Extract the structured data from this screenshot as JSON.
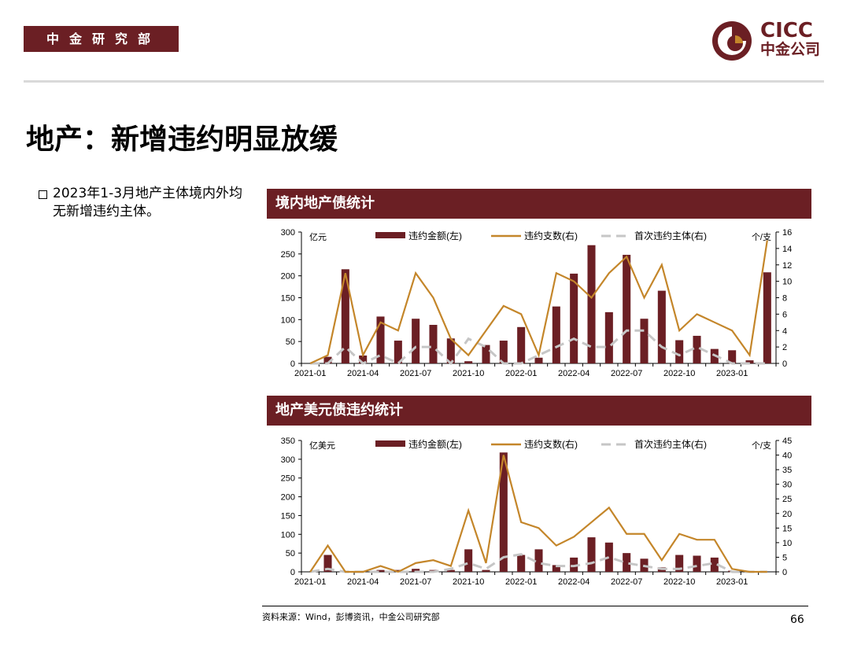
{
  "header": {
    "dept_tag": "中金研究部",
    "logo_en": "CICC",
    "logo_cn": "中金公司"
  },
  "colors": {
    "brand": "#6b1f24",
    "bar": "#6b1f24",
    "line": "#c4862a",
    "dashed": "#c6c6c6"
  },
  "slide": {
    "title": "地产：新增违约明显放缓",
    "bullet": "2023年1-3月地产主体境内外均无新增违约主体。",
    "footer_source": "资料来源：Wind，彭博资讯，中金公司研究部",
    "page_number": "66"
  },
  "chart_data": [
    {
      "id": "domestic",
      "panel_title": "境内地产债统计",
      "type": "bar+line",
      "left_unit": "亿元",
      "right_unit": "个/支",
      "ylim_left": [
        0,
        300
      ],
      "ylim_right": [
        0,
        16
      ],
      "yticks_left": [
        "0",
        "50",
        "100",
        "150",
        "200",
        "250",
        "300"
      ],
      "yticks_right": [
        "0",
        "2",
        "4",
        "6",
        "8",
        "10",
        "12",
        "14",
        "16"
      ],
      "x_tick_labels": [
        "2021-01",
        "2021-04",
        "2021-07",
        "2021-10",
        "2022-01",
        "2022-04",
        "2022-07",
        "2022-10",
        "2023-01"
      ],
      "x_tick_indices": [
        0,
        3,
        6,
        9,
        12,
        15,
        18,
        21,
        24
      ],
      "legend": [
        "违约金额(左)",
        "违约支数(右)",
        "首次违约主体(右)"
      ],
      "months": [
        "2021-01",
        "2021-02",
        "2021-03",
        "2021-04",
        "2021-05",
        "2021-06",
        "2021-07",
        "2021-08",
        "2021-09",
        "2021-10",
        "2021-11",
        "2021-12",
        "2022-01",
        "2022-02",
        "2022-03",
        "2022-04",
        "2022-05",
        "2022-06",
        "2022-07",
        "2022-08",
        "2022-09",
        "2022-10",
        "2022-11",
        "2022-12",
        "2023-01",
        "2023-02",
        "2023-03"
      ],
      "series": [
        {
          "name": "违约金额(左)",
          "type": "bar",
          "axis": "left",
          "values": [
            0,
            15,
            215,
            18,
            107,
            52,
            102,
            88,
            57,
            5,
            42,
            52,
            83,
            13,
            130,
            205,
            270,
            117,
            248,
            102,
            166,
            53,
            63,
            33,
            30,
            7,
            208
          ]
        },
        {
          "name": "违约支数(右)",
          "type": "line",
          "axis": "right",
          "values": [
            0,
            1,
            11,
            1,
            5,
            4,
            11,
            8,
            3,
            1,
            4,
            7,
            6,
            1,
            11,
            10,
            8,
            11,
            13,
            8,
            12,
            4,
            6,
            5,
            4,
            1,
            15
          ]
        },
        {
          "name": "首次违约主体(右)",
          "type": "dashed",
          "axis": "right",
          "values": [
            0,
            0,
            2,
            0,
            1,
            0,
            2,
            2,
            0,
            3,
            2,
            0,
            0,
            1,
            2,
            3,
            2,
            2,
            4,
            4,
            2,
            1,
            2,
            1,
            0,
            0,
            0
          ]
        }
      ]
    },
    {
      "id": "usd",
      "panel_title": "地产美元债违约统计",
      "type": "bar+line",
      "left_unit": "亿美元",
      "right_unit": "个/支",
      "ylim_left": [
        0,
        350
      ],
      "ylim_right": [
        0,
        45
      ],
      "yticks_left": [
        "0",
        "50",
        "100",
        "150",
        "200",
        "250",
        "300",
        "350"
      ],
      "yticks_right": [
        "0",
        "5",
        "10",
        "15",
        "20",
        "25",
        "30",
        "35",
        "40",
        "45"
      ],
      "x_tick_labels": [
        "2021-01",
        "2021-04",
        "2021-07",
        "2021-10",
        "2022-01",
        "2022-04",
        "2022-07",
        "2022-10",
        "2023-01"
      ],
      "x_tick_indices": [
        0,
        3,
        6,
        9,
        12,
        15,
        18,
        21,
        24
      ],
      "legend": [
        "违约金额(左)",
        "违约支数(右)",
        "首次违约主体(右)"
      ],
      "months": [
        "2021-01",
        "2021-02",
        "2021-03",
        "2021-04",
        "2021-05",
        "2021-06",
        "2021-07",
        "2021-08",
        "2021-09",
        "2021-10",
        "2021-11",
        "2021-12",
        "2022-01",
        "2022-02",
        "2022-03",
        "2022-04",
        "2022-05",
        "2022-06",
        "2022-07",
        "2022-08",
        "2022-09",
        "2022-10",
        "2022-11",
        "2022-12",
        "2023-01",
        "2023-02",
        "2023-03"
      ],
      "series": [
        {
          "name": "违约金额(左)",
          "type": "bar",
          "axis": "left",
          "values": [
            0,
            45,
            2,
            2,
            5,
            5,
            8,
            5,
            5,
            60,
            5,
            318,
            45,
            60,
            18,
            38,
            92,
            78,
            50,
            35,
            12,
            45,
            43,
            38,
            3,
            0,
            0
          ]
        },
        {
          "name": "违约支数(右)",
          "type": "line",
          "axis": "right",
          "values": [
            0,
            9,
            0,
            0,
            2,
            0,
            3,
            4,
            2,
            21,
            3,
            40,
            17,
            15,
            9,
            12,
            17,
            22,
            13,
            13,
            4,
            13,
            11,
            11,
            1,
            0,
            0
          ]
        },
        {
          "name": "首次违约主体(右)",
          "type": "dashed",
          "axis": "right",
          "values": [
            0,
            1,
            0,
            0,
            0,
            0,
            0,
            0,
            1,
            3,
            1,
            5,
            6,
            3,
            2,
            2,
            3,
            5,
            3,
            2,
            1,
            1,
            2,
            3,
            0,
            0,
            0
          ]
        }
      ]
    }
  ]
}
